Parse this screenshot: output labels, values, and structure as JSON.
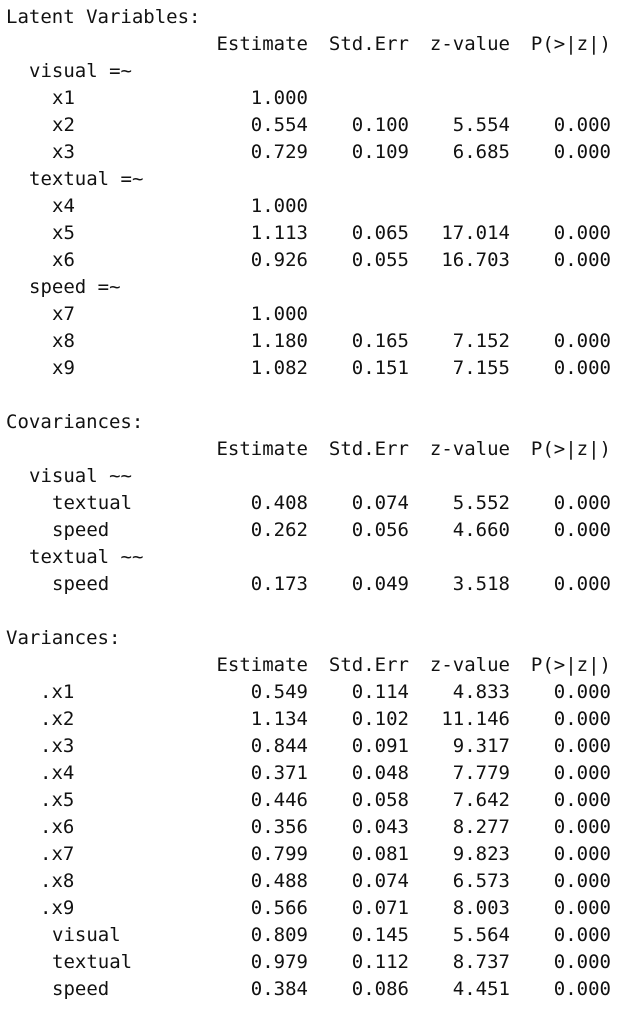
{
  "headers": [
    "Estimate",
    "Std.Err",
    "z-value",
    "P(>|z|)"
  ],
  "sections": [
    {
      "title": "Latent Variables:",
      "groups": [
        {
          "label": "visual =~",
          "rows": [
            {
              "name": "x1",
              "est": "1.000",
              "se": "",
              "z": "",
              "p": ""
            },
            {
              "name": "x2",
              "est": "0.554",
              "se": "0.100",
              "z": "5.554",
              "p": "0.000"
            },
            {
              "name": "x3",
              "est": "0.729",
              "se": "0.109",
              "z": "6.685",
              "p": "0.000"
            }
          ]
        },
        {
          "label": "textual =~",
          "rows": [
            {
              "name": "x4",
              "est": "1.000",
              "se": "",
              "z": "",
              "p": ""
            },
            {
              "name": "x5",
              "est": "1.113",
              "se": "0.065",
              "z": "17.014",
              "p": "0.000"
            },
            {
              "name": "x6",
              "est": "0.926",
              "se": "0.055",
              "z": "16.703",
              "p": "0.000"
            }
          ]
        },
        {
          "label": "speed =~",
          "rows": [
            {
              "name": "x7",
              "est": "1.000",
              "se": "",
              "z": "",
              "p": ""
            },
            {
              "name": "x8",
              "est": "1.180",
              "se": "0.165",
              "z": "7.152",
              "p": "0.000"
            },
            {
              "name": "x9",
              "est": "1.082",
              "se": "0.151",
              "z": "7.155",
              "p": "0.000"
            }
          ]
        }
      ]
    },
    {
      "title": "Covariances:",
      "groups": [
        {
          "label": "visual ~~",
          "rows": [
            {
              "name": "textual",
              "est": "0.408",
              "se": "0.074",
              "z": "5.552",
              "p": "0.000"
            },
            {
              "name": "speed",
              "est": "0.262",
              "se": "0.056",
              "z": "4.660",
              "p": "0.000"
            }
          ]
        },
        {
          "label": "textual ~~",
          "rows": [
            {
              "name": "speed",
              "est": "0.173",
              "se": "0.049",
              "z": "3.518",
              "p": "0.000"
            }
          ]
        }
      ]
    },
    {
      "title": "Variances:",
      "groups": [
        {
          "label": "",
          "rows": [
            {
              "name": ".x1",
              "est": "0.549",
              "se": "0.114",
              "z": "4.833",
              "p": "0.000"
            },
            {
              "name": ".x2",
              "est": "1.134",
              "se": "0.102",
              "z": "11.146",
              "p": "0.000"
            },
            {
              "name": ".x3",
              "est": "0.844",
              "se": "0.091",
              "z": "9.317",
              "p": "0.000"
            },
            {
              "name": ".x4",
              "est": "0.371",
              "se": "0.048",
              "z": "7.779",
              "p": "0.000"
            },
            {
              "name": ".x5",
              "est": "0.446",
              "se": "0.058",
              "z": "7.642",
              "p": "0.000"
            },
            {
              "name": ".x6",
              "est": "0.356",
              "se": "0.043",
              "z": "8.277",
              "p": "0.000"
            },
            {
              "name": ".x7",
              "est": "0.799",
              "se": "0.081",
              "z": "9.823",
              "p": "0.000"
            },
            {
              "name": ".x8",
              "est": "0.488",
              "se": "0.074",
              "z": "6.573",
              "p": "0.000"
            },
            {
              "name": ".x9",
              "est": "0.566",
              "se": "0.071",
              "z": "8.003",
              "p": "0.000"
            },
            {
              "name": "visual",
              "est": "0.809",
              "se": "0.145",
              "z": "5.564",
              "p": "0.000"
            },
            {
              "name": "textual",
              "est": "0.979",
              "se": "0.112",
              "z": "8.737",
              "p": "0.000"
            },
            {
              "name": "speed",
              "est": "0.384",
              "se": "0.086",
              "z": "4.451",
              "p": "0.000"
            }
          ]
        }
      ]
    }
  ]
}
